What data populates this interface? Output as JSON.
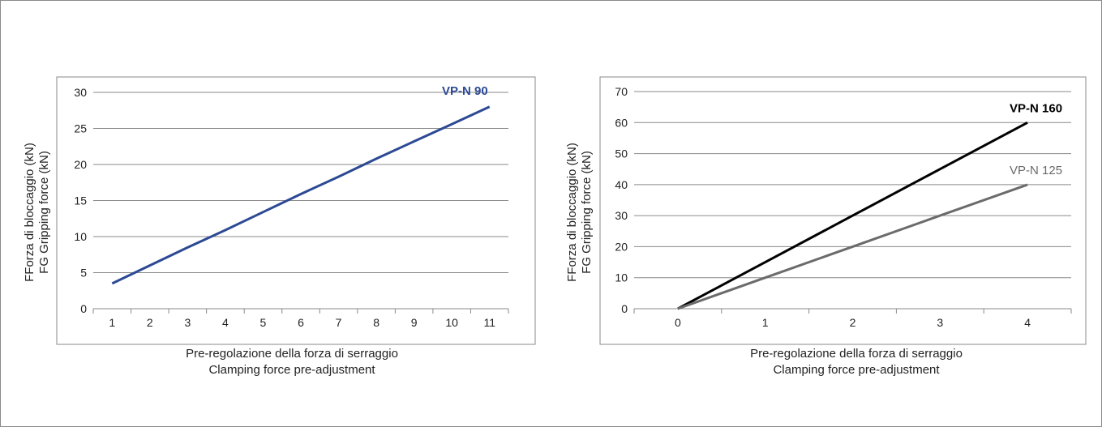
{
  "chart_data": [
    {
      "type": "line",
      "x": [
        1,
        2,
        3,
        4,
        5,
        6,
        7,
        8,
        9,
        10,
        11
      ],
      "xticks": [
        "1",
        "2",
        "3",
        "4",
        "5",
        "6",
        "7",
        "8",
        "9",
        "10",
        "11"
      ],
      "yticks": [
        "0",
        "5",
        "10",
        "15",
        "20",
        "25",
        "30"
      ],
      "ylim": [
        0,
        30
      ],
      "grid": true,
      "series": [
        {
          "name": "VP-N 90",
          "values": [
            3.5,
            6.0,
            8.5,
            10.9,
            13.4,
            15.9,
            18.3,
            20.8,
            23.2,
            25.6,
            28.0
          ],
          "color": "#2c4a94"
        }
      ],
      "xlabel_line1": "Pre-regolazione della forza di serraggio",
      "xlabel_line2": "Clamping force pre-adjustment",
      "ylabel_line1": "FForza di bloccaggio (kN)",
      "ylabel_line2": "FG Gripping force (kN)"
    },
    {
      "type": "line",
      "x": [
        0,
        1,
        2,
        3,
        4
      ],
      "xticks": [
        "0",
        "1",
        "2",
        "3",
        "4"
      ],
      "yticks": [
        "0",
        "10",
        "20",
        "30",
        "40",
        "50",
        "60",
        "70"
      ],
      "ylim": [
        0,
        70
      ],
      "grid": true,
      "series": [
        {
          "name": "VP-N 160",
          "values": [
            0,
            15,
            30,
            45,
            60
          ],
          "color": "#000000"
        },
        {
          "name": "VP-N 125",
          "values": [
            0,
            10,
            20,
            30,
            40
          ],
          "color": "#6b6b6b"
        }
      ],
      "xlabel_line1": "Pre-regolazione della forza di serraggio",
      "xlabel_line2": "Clamping force pre-adjustment",
      "ylabel_line1": "FForza di bloccaggio (kN)",
      "ylabel_line2": "FG Gripping force (kN)"
    }
  ]
}
